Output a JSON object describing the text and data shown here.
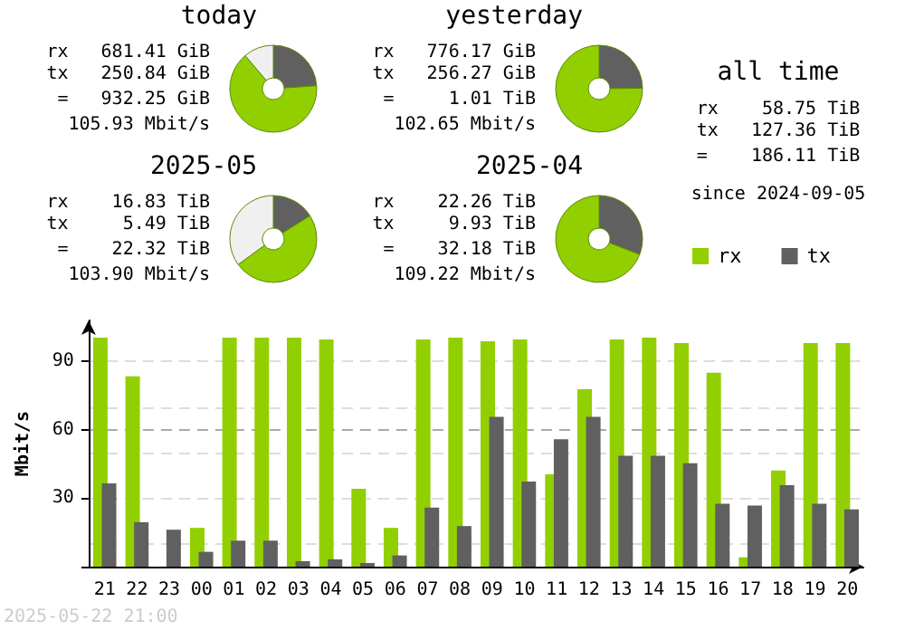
{
  "chart_data": [
    {
      "type": "donut",
      "title": "today",
      "categories": [
        null,
        null,
        null
      ],
      "values": [
        23.9,
        64.9,
        11.2
      ],
      "colors": [
        "#606060",
        "#92cf00",
        "#f0f0f0"
      ],
      "annotations": [
        "rx   681.41 GiB",
        "tx   250.84 GiB",
        "=   932.25 GiB",
        "105.93 Mbit/s"
      ]
    },
    {
      "type": "donut",
      "title": "yesterday",
      "categories": [
        null,
        null
      ],
      "values": [
        24.8,
        75.2
      ],
      "colors": [
        "#606060",
        "#92cf00"
      ],
      "annotations": [
        "rx   776.17 GiB",
        "tx   256.27 GiB",
        "=     1.01 TiB",
        "102.65 Mbit/s"
      ]
    },
    {
      "type": "other",
      "title": "all time",
      "annotations": [
        "rx    58.75 TiB",
        "tx   127.36 TiB",
        "=    186.11 TiB",
        "since 2024-09-05"
      ]
    },
    {
      "type": "donut",
      "title": "2025-05",
      "categories": [
        null,
        null,
        null
      ],
      "values": [
        16,
        49,
        35
      ],
      "colors": [
        "#606060",
        "#92cf00",
        "#f0f0f0"
      ],
      "annotations": [
        "rx    16.83 TiB",
        "tx     5.49 TiB",
        "=    22.32 TiB",
        "103.90 Mbit/s"
      ]
    },
    {
      "type": "donut",
      "title": "2025-04",
      "categories": [
        null,
        null
      ],
      "values": [
        30.8,
        69.2
      ],
      "colors": [
        "#606060",
        "#92cf00"
      ],
      "annotations": [
        "rx    22.26 TiB",
        "tx     9.93 TiB",
        "=    32.18 TiB",
        "109.22 Mbit/s"
      ]
    },
    {
      "type": "bar",
      "ylabel": "Mbit/s",
      "categories": [
        "21",
        "22",
        "23",
        "00",
        "01",
        "02",
        "03",
        "04",
        "05",
        "06",
        "07",
        "08",
        "09",
        "10",
        "11",
        "12",
        "13",
        "14",
        "15",
        "16",
        "17",
        "18",
        "19",
        "20"
      ],
      "series": [
        {
          "name": "rx",
          "color": "#92cf00",
          "values": [
            100.5,
            83.5,
            null,
            17.0,
            100.5,
            100.5,
            100.5,
            99.7,
            34.1,
            17.0,
            99.7,
            100.5,
            98.9,
            99.7,
            40.5,
            77.8,
            99.7,
            100.5,
            98.1,
            85.1,
            4.1,
            42.2,
            98.1,
            98.1
          ]
        },
        {
          "name": "tx",
          "color": "#606060",
          "values": [
            36.5,
            19.5,
            16.2,
            6.5,
            11.4,
            11.4,
            2.4,
            3.2,
            1.6,
            4.9,
            25.9,
            17.8,
            65.7,
            37.3,
            55.9,
            65.7,
            48.6,
            48.6,
            45.4,
            27.6,
            26.8,
            35.7,
            27.6,
            25.1
          ]
        }
      ],
      "ylim": [
        0,
        108
      ],
      "yticks": [
        {
          "value": 0,
          "label": null
        },
        30,
        60,
        90
      ],
      "grid": "y",
      "legend": "top right",
      "annotations": [
        "2025-05-22 21:00"
      ]
    }
  ]
}
